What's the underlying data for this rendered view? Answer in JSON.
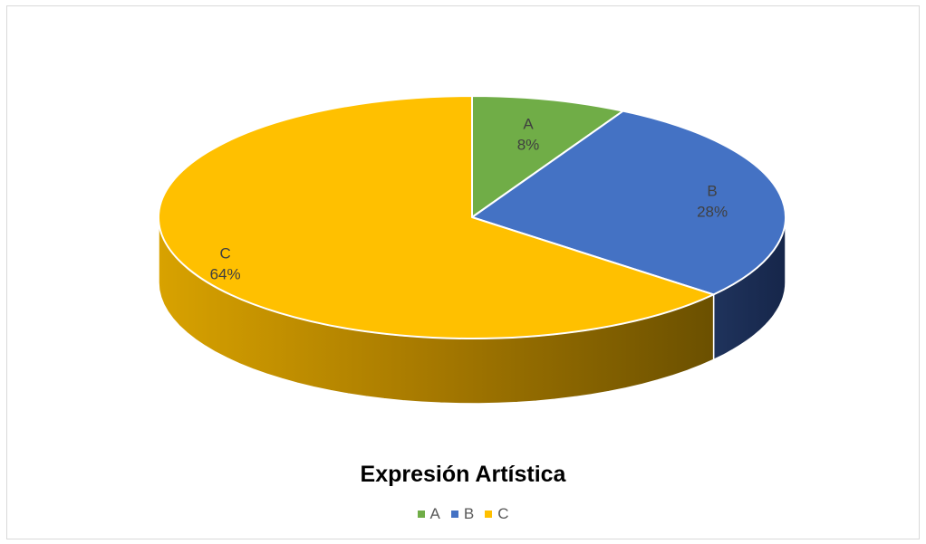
{
  "chart_data": {
    "type": "pie",
    "title": "Expresión Artística",
    "slices": [
      {
        "name": "A",
        "value": 8,
        "label": "8%",
        "color": "#70AD47"
      },
      {
        "name": "B",
        "value": 28,
        "label": "28%",
        "color": "#4472C4"
      },
      {
        "name": "C",
        "value": 64,
        "label": "64%",
        "color": "#FFC000"
      }
    ],
    "legend": {
      "position": "bottom",
      "items": [
        "A",
        "B",
        "C"
      ]
    }
  }
}
